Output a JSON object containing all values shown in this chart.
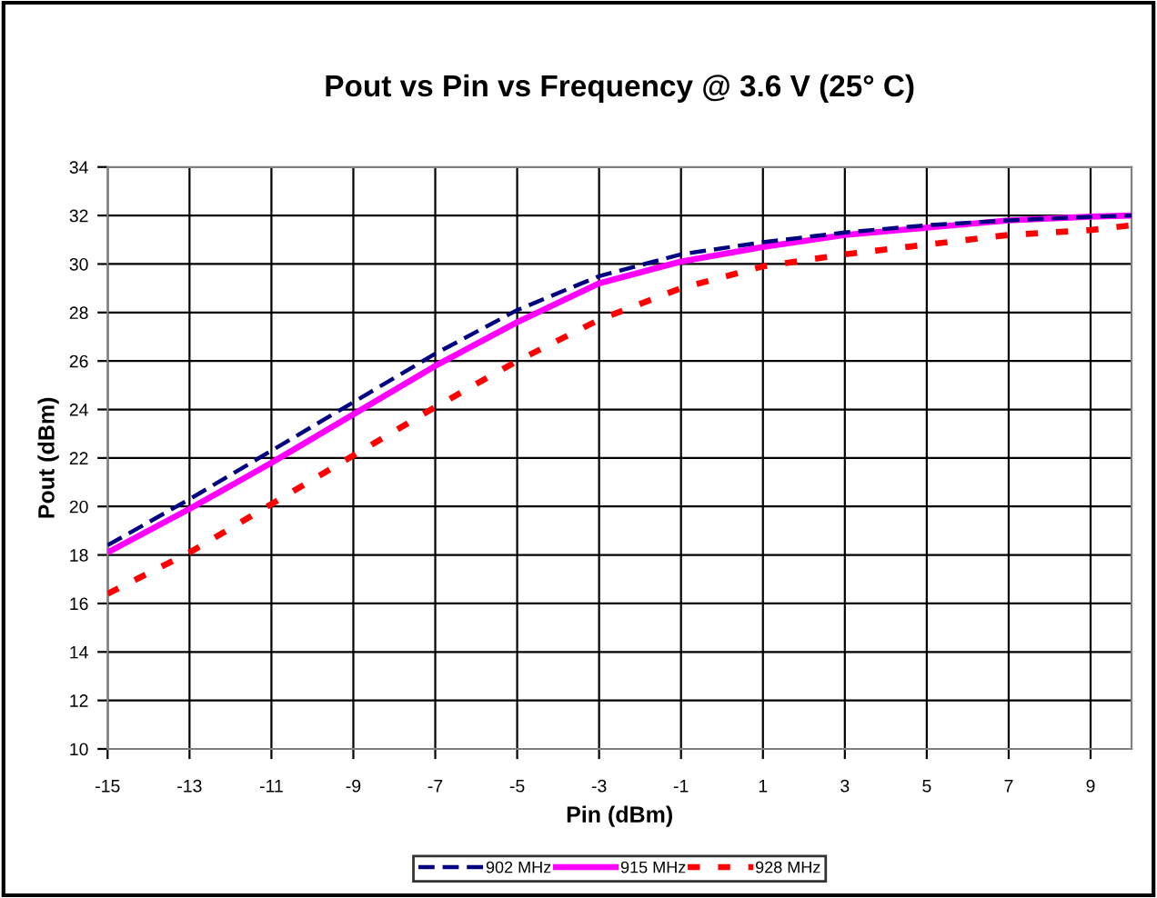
{
  "chart_data": {
    "type": "line",
    "title": "Pout vs Pin vs Frequency @ 3.6 V (25° C)",
    "xlabel": "Pin (dBm)",
    "ylabel": "Pout (dBm)",
    "x": [
      -15,
      -13,
      -11,
      -9,
      -7,
      -5,
      -3,
      -1,
      1,
      3,
      5,
      7,
      9,
      10
    ],
    "series": [
      {
        "name": "902 MHz",
        "color": "#000080",
        "line_style": "dashed",
        "values": [
          18.4,
          20.3,
          22.3,
          24.3,
          26.3,
          28.1,
          29.5,
          30.4,
          30.9,
          31.3,
          31.6,
          31.8,
          31.95,
          32
        ]
      },
      {
        "name": "915 MHz",
        "color": "#ff00ff",
        "line_style": "solid",
        "values": [
          18.1,
          19.9,
          21.8,
          23.8,
          25.8,
          27.6,
          29.2,
          30.1,
          30.7,
          31.2,
          31.5,
          31.8,
          31.95,
          32
        ]
      },
      {
        "name": "928 MHz",
        "color": "#ff0000",
        "line_style": "dotted",
        "values": [
          16.4,
          18.1,
          20.1,
          22.1,
          24.1,
          26,
          27.7,
          29,
          29.9,
          30.4,
          30.8,
          31.2,
          31.4,
          31.6
        ]
      }
    ],
    "xlim": [
      -15,
      10
    ],
    "xticks": [
      -15,
      -13,
      -11,
      -9,
      -7,
      -5,
      -3,
      -1,
      1,
      3,
      5,
      7,
      9
    ],
    "ylim": [
      10,
      34
    ],
    "yticks": [
      10,
      12,
      14,
      16,
      18,
      20,
      22,
      24,
      26,
      28,
      30,
      32,
      34
    ],
    "grid": true,
    "legend": "bottom",
    "marker": "none"
  }
}
